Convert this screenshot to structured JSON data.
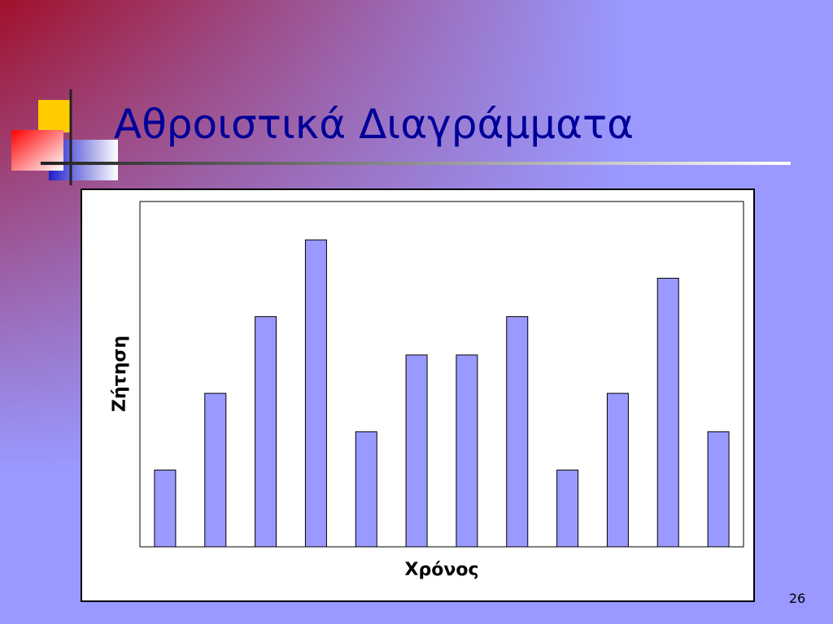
{
  "slide": {
    "title": "Αθροιστικά Διαγράμματα",
    "page_number": "26"
  },
  "chart_data": {
    "type": "bar",
    "xlabel": "Χρόνος",
    "ylabel": "Ζήτηση",
    "values": [
      2,
      4,
      6,
      8,
      3,
      5,
      5,
      6,
      2,
      4,
      7,
      3
    ],
    "color": "#9999ff",
    "ylim": [
      0,
      9
    ]
  }
}
